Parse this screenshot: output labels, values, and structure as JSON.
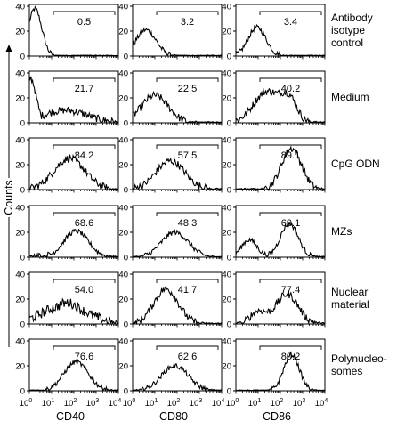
{
  "chart_data": {
    "type": "histogram-grid",
    "ylabel": "Counts",
    "columns": [
      {
        "marker": "CD40"
      },
      {
        "marker": "CD80"
      },
      {
        "marker": "CD86"
      }
    ],
    "x_scale": "log",
    "x_range": [
      1,
      10000
    ],
    "x_ticks": [
      {
        "base": "10",
        "exp": "0"
      },
      {
        "base": "10",
        "exp": "1"
      },
      {
        "base": "10",
        "exp": "2"
      },
      {
        "base": "10",
        "exp": "3"
      },
      {
        "base": "10",
        "exp": "4"
      }
    ],
    "y_ticks": [
      "0",
      "20",
      "40"
    ],
    "rows": [
      {
        "label_lines": [
          "Antibody",
          "isotype",
          "control"
        ],
        "ylim": [
          0,
          40
        ],
        "gate_percent": [
          "0.5",
          "3.2",
          "3.4"
        ],
        "profiles": [
          {
            "peak_log": 0.25,
            "width": 0.3,
            "height": 38,
            "noise": 2
          },
          {
            "peak_log": 0.6,
            "width": 0.45,
            "height": 21,
            "noise": 2
          },
          {
            "peak_log": 0.95,
            "width": 0.4,
            "height": 23,
            "noise": 2
          }
        ]
      },
      {
        "label_lines": [
          "Medium"
        ],
        "ylim": [
          0,
          40
        ],
        "gate_percent": [
          "21.7",
          "22.5",
          "40.2"
        ],
        "profiles": [
          {
            "peak_log": 0.05,
            "width": 0.25,
            "height": 36,
            "noise": 3,
            "tail": 10
          },
          {
            "peak_log": 1.0,
            "width": 0.6,
            "height": 22,
            "noise": 3
          },
          {
            "peak_log": 1.4,
            "width": 0.6,
            "height": 25,
            "noise": 3,
            "second_peak_log": 2.4,
            "second_height": 17
          }
        ]
      },
      {
        "label_lines": [
          "CpG ODN"
        ],
        "ylim": [
          0,
          40
        ],
        "gate_percent": [
          "84.2",
          "57.5",
          "89.1"
        ],
        "profiles": [
          {
            "peak_log": 1.8,
            "width": 0.7,
            "height": 25,
            "noise": 3
          },
          {
            "peak_log": 1.7,
            "width": 0.65,
            "height": 23,
            "noise": 3
          },
          {
            "peak_log": 2.5,
            "width": 0.45,
            "height": 33,
            "noise": 3
          }
        ]
      },
      {
        "label_lines": [
          "MZs"
        ],
        "ylim": [
          0,
          40
        ],
        "gate_percent": [
          "68.6",
          "48.3",
          "69.1"
        ],
        "profiles": [
          {
            "peak_log": 2.1,
            "width": 0.55,
            "height": 21,
            "noise": 2,
            "tail": 3
          },
          {
            "peak_log": 1.9,
            "width": 0.6,
            "height": 20,
            "noise": 2
          },
          {
            "peak_log": 2.4,
            "width": 0.4,
            "height": 27,
            "noise": 2,
            "second_peak_log": 0.6,
            "second_height": 14
          }
        ]
      },
      {
        "label_lines": [
          "Nuclear",
          "material"
        ],
        "ylim": [
          0,
          40
        ],
        "gate_percent": [
          "54.0",
          "41.7",
          "77.4"
        ],
        "profiles": [
          {
            "peak_log": 1.7,
            "width": 0.7,
            "height": 17,
            "noise": 4,
            "tail": 15
          },
          {
            "peak_log": 1.5,
            "width": 0.55,
            "height": 28,
            "noise": 3
          },
          {
            "peak_log": 2.3,
            "width": 0.5,
            "height": 24,
            "noise": 3,
            "second_peak_log": 1.0,
            "second_height": 10
          }
        ]
      },
      {
        "label_lines": [
          "Polynucleo-",
          "somes"
        ],
        "ylim": [
          0,
          40
        ],
        "gate_percent": [
          "76.6",
          "62.6",
          "80.2"
        ],
        "profiles": [
          {
            "peak_log": 2.1,
            "width": 0.55,
            "height": 23,
            "noise": 2
          },
          {
            "peak_log": 1.9,
            "width": 0.6,
            "height": 20,
            "noise": 2
          },
          {
            "peak_log": 2.5,
            "width": 0.35,
            "height": 29,
            "noise": 2
          }
        ]
      }
    ]
  }
}
